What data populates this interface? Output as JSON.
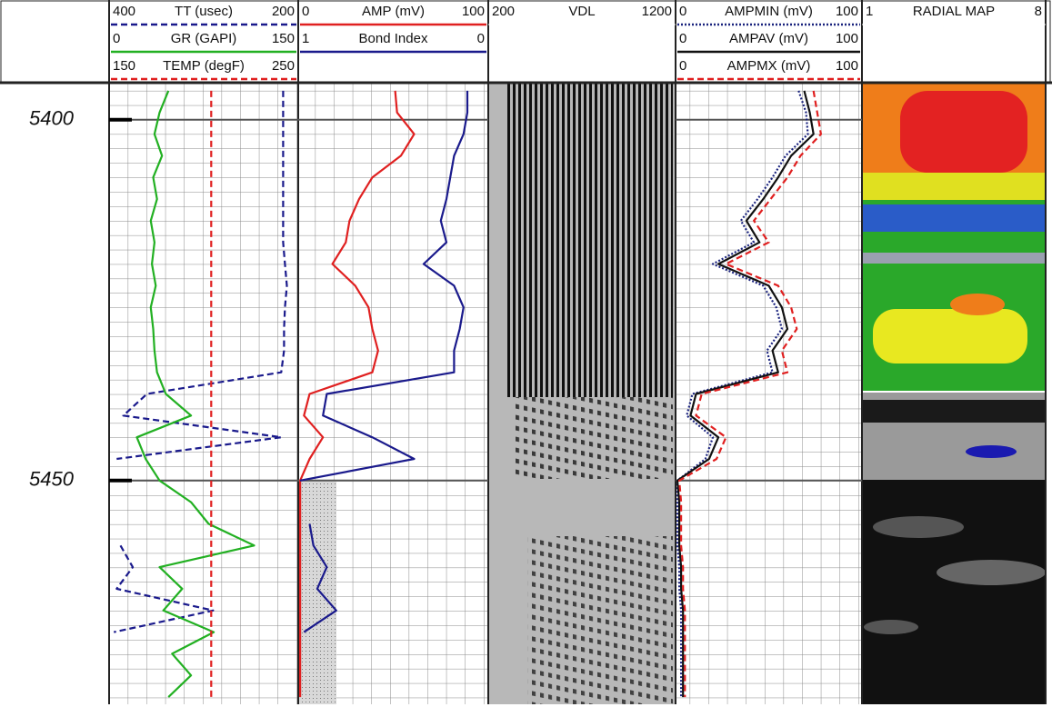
{
  "depth_axis": {
    "ylim": [
      5395,
      5481
    ],
    "yticks": [
      5400,
      5450
    ],
    "depths": [
      5396,
      5399,
      5402,
      5405,
      5408,
      5411,
      5414,
      5417,
      5420,
      5423,
      5426,
      5429,
      5432,
      5435,
      5438,
      5441,
      5444,
      5447,
      5450,
      5453,
      5456,
      5459,
      5462,
      5465,
      5468,
      5471,
      5474,
      5477,
      5480
    ]
  },
  "chart_data": [
    {
      "type": "log-track",
      "series": [
        {
          "name": "TT (usec)",
          "xlim": [
            400,
            200
          ],
          "color": "#1a1a8c",
          "style": "dashed",
          "values": [
            216,
            216,
            216,
            216,
            216,
            216,
            216,
            216,
            214,
            212,
            214,
            215,
            215,
            218,
            360,
            385,
            218,
            392,
            null,
            null,
            null,
            388,
            375,
            392,
            290,
            395,
            null,
            null,
            null
          ]
        },
        {
          "name": "GR (GAPI)",
          "xlim": [
            0,
            150
          ],
          "color": "#22b022",
          "style": "solid",
          "values": [
            47,
            40,
            36,
            42,
            35,
            38,
            33,
            36,
            34,
            37,
            33,
            35,
            36,
            38,
            45,
            65,
            22,
            29,
            40,
            65,
            79,
            115,
            40,
            58,
            43,
            83,
            50,
            65,
            47
          ]
        },
        {
          "name": "TEMP (degF)",
          "xlim": [
            150,
            250
          ],
          "color": "#e02020",
          "style": "dashed",
          "values": [
            204,
            204,
            204,
            204,
            204,
            204,
            204,
            204,
            204,
            204,
            204,
            204,
            204,
            204,
            204,
            204,
            204,
            204,
            204,
            204,
            204,
            204,
            204,
            204,
            204,
            204,
            204,
            204,
            204
          ]
        }
      ]
    },
    {
      "type": "log-track",
      "series": [
        {
          "name": "AMP (mV)",
          "xlim": [
            0,
            100
          ],
          "color": "#e02020",
          "style": "solid",
          "values": [
            51,
            52,
            61,
            54,
            39,
            32,
            27,
            25,
            18,
            30,
            37,
            39,
            42,
            39,
            6,
            3,
            13,
            6,
            1,
            1,
            1,
            1,
            1,
            1,
            1,
            1,
            1,
            1,
            1
          ]
        },
        {
          "name": "Bond Index",
          "xlim": [
            1,
            0
          ],
          "color": "#1a1a8c",
          "style": "solid",
          "values": [
            0.11,
            0.11,
            0.13,
            0.18,
            0.2,
            0.22,
            0.25,
            0.22,
            0.34,
            0.18,
            0.13,
            0.15,
            0.18,
            0.18,
            0.85,
            0.87,
            0.61,
            0.39,
            0.99,
            null,
            0.94,
            0.92,
            0.85,
            0.9,
            0.8,
            0.97,
            null,
            null,
            null
          ]
        }
      ]
    },
    {
      "type": "vdl",
      "series": [
        {
          "name": "VDL",
          "xlim": [
            200,
            1200
          ]
        }
      ]
    },
    {
      "type": "log-track",
      "series": [
        {
          "name": "AMPMIN (mV)",
          "xlim": [
            0,
            100
          ],
          "color": "#1a237e",
          "style": "dotted",
          "values": [
            66,
            70,
            71,
            59,
            52,
            44,
            35,
            42,
            20,
            47,
            54,
            57,
            49,
            52,
            9,
            6,
            20,
            16,
            1,
            1,
            1,
            1,
            2,
            2,
            3,
            3,
            3,
            3,
            3
          ]
        },
        {
          "name": "AMPAV (mV)",
          "xlim": [
            0,
            100
          ],
          "color": "#111111",
          "style": "solid",
          "values": [
            69,
            72,
            74,
            62,
            55,
            47,
            38,
            45,
            23,
            50,
            57,
            60,
            52,
            55,
            11,
            8,
            23,
            18,
            1,
            2,
            2,
            2,
            3,
            3,
            4,
            4,
            4,
            4,
            4
          ]
        },
        {
          "name": "AMPMX (mV)",
          "xlim": [
            0,
            100
          ],
          "color": "#e02020",
          "style": "dashed",
          "values": [
            74,
            76,
            78,
            67,
            60,
            51,
            42,
            50,
            27,
            55,
            62,
            65,
            57,
            60,
            14,
            11,
            27,
            22,
            2,
            3,
            3,
            3,
            4,
            4,
            5,
            5,
            5,
            5,
            5
          ]
        }
      ]
    },
    {
      "type": "radial-map",
      "series": [
        {
          "name": "RADIAL MAP",
          "xlim": [
            1,
            8
          ]
        }
      ]
    }
  ]
}
